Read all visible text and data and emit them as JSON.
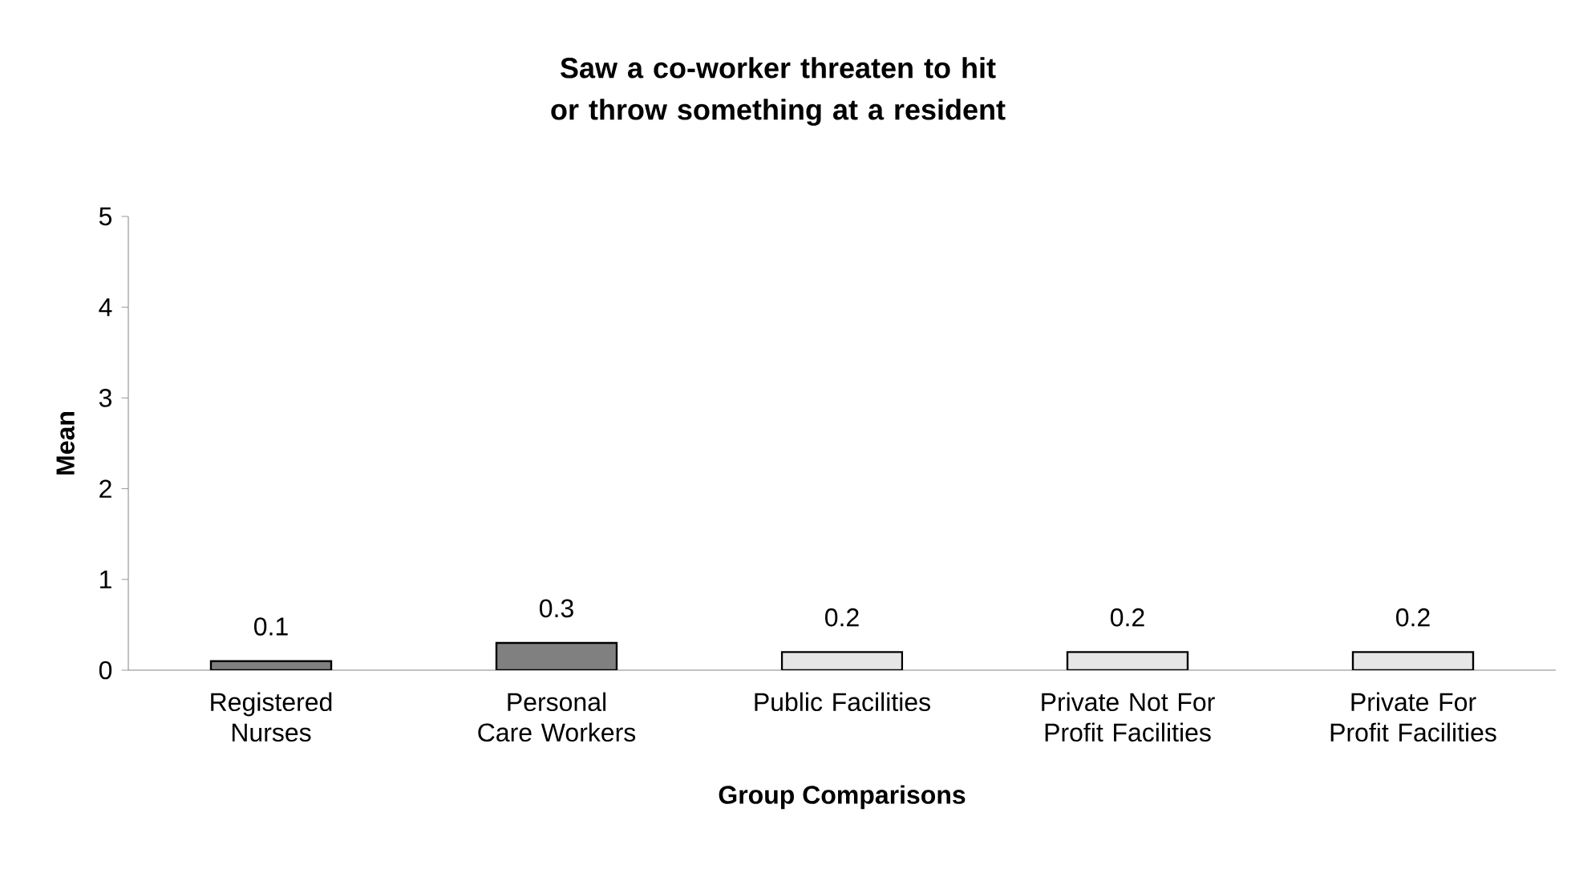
{
  "chart_data": {
    "type": "bar",
    "title": "Saw a co-worker threaten to hit or throw something at a resident",
    "xlabel": "Group Comparisons",
    "ylabel": "Mean",
    "categories": [
      "Registered Nurses",
      "Personal Care Workers",
      "Public Facilities",
      "Private Not For Profit Facilities",
      "Private For Profit Facilities"
    ],
    "values": [
      0.1,
      0.3,
      0.2,
      0.2,
      0.2
    ],
    "colors": [
      "#808080",
      "#808080",
      "#e6e6e6",
      "#e6e6e6",
      "#e6e6e6"
    ],
    "ylim": [
      0,
      5
    ],
    "yticks": [
      0,
      1,
      2,
      3,
      4,
      5
    ],
    "data_labels": true
  }
}
